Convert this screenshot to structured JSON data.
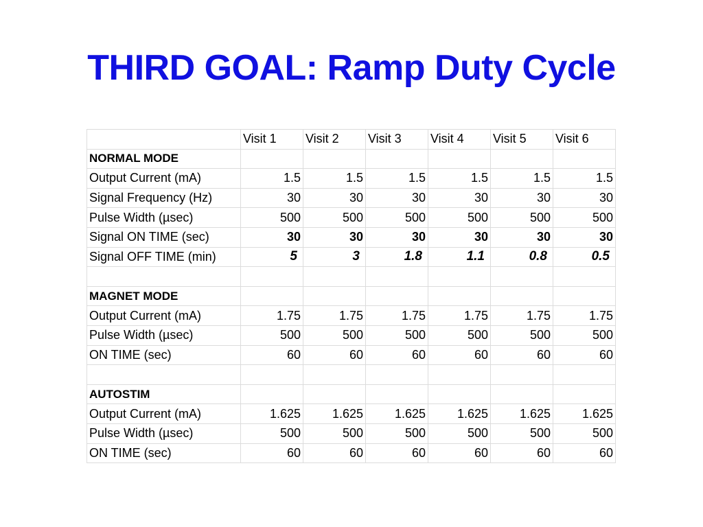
{
  "title": "THIRD GOAL: Ramp Duty Cycle",
  "table": {
    "header": [
      "",
      "Visit 1",
      "Visit 2",
      "Visit 3",
      "Visit 4",
      "Visit 5",
      "Visit 6"
    ],
    "rows": [
      {
        "label": "NORMAL MODE",
        "values": [
          "",
          "",
          "",
          "",
          "",
          ""
        ]
      },
      {
        "label": "Output Current (mA)",
        "values": [
          "1.5",
          "1.5",
          "1.5",
          "1.5",
          "1.5",
          "1.5"
        ]
      },
      {
        "label": "Signal Frequency (Hz)",
        "values": [
          "30",
          "30",
          "30",
          "30",
          "30",
          "30"
        ]
      },
      {
        "label": "Pulse Width (µsec)",
        "values": [
          "500",
          "500",
          "500",
          "500",
          "500",
          "500"
        ]
      },
      {
        "label": "Signal ON TIME (sec)",
        "values": [
          "30",
          "30",
          "30",
          "30",
          "30",
          "30"
        ]
      },
      {
        "label": "Signal OFF TIME (min)",
        "values": [
          "5",
          "3",
          "1.8",
          "1.1",
          "0.8",
          "0.5"
        ]
      },
      {
        "label": "",
        "values": [
          "",
          "",
          "",
          "",
          "",
          ""
        ]
      },
      {
        "label": "MAGNET MODE",
        "values": [
          "",
          "",
          "",
          "",
          "",
          ""
        ]
      },
      {
        "label": "Output Current (mA)",
        "values": [
          "1.75",
          "1.75",
          "1.75",
          "1.75",
          "1.75",
          "1.75"
        ]
      },
      {
        "label": "Pulse Width (µsec)",
        "values": [
          "500",
          "500",
          "500",
          "500",
          "500",
          "500"
        ]
      },
      {
        "label": "ON TIME (sec)",
        "values": [
          "60",
          "60",
          "60",
          "60",
          "60",
          "60"
        ]
      },
      {
        "label": "",
        "values": [
          "",
          "",
          "",
          "",
          "",
          ""
        ]
      },
      {
        "label": "AUTOSTIM",
        "values": [
          "",
          "",
          "",
          "",
          "",
          ""
        ]
      },
      {
        "label": "Output Current (mA)",
        "values": [
          "1.625",
          "1.625",
          "1.625",
          "1.625",
          "1.625",
          "1.625"
        ]
      },
      {
        "label": "Pulse Width (µsec)",
        "values": [
          "500",
          "500",
          "500",
          "500",
          "500",
          "500"
        ]
      },
      {
        "label": "ON TIME (sec)",
        "values": [
          "60",
          "60",
          "60",
          "60",
          "60",
          "60"
        ]
      }
    ]
  }
}
